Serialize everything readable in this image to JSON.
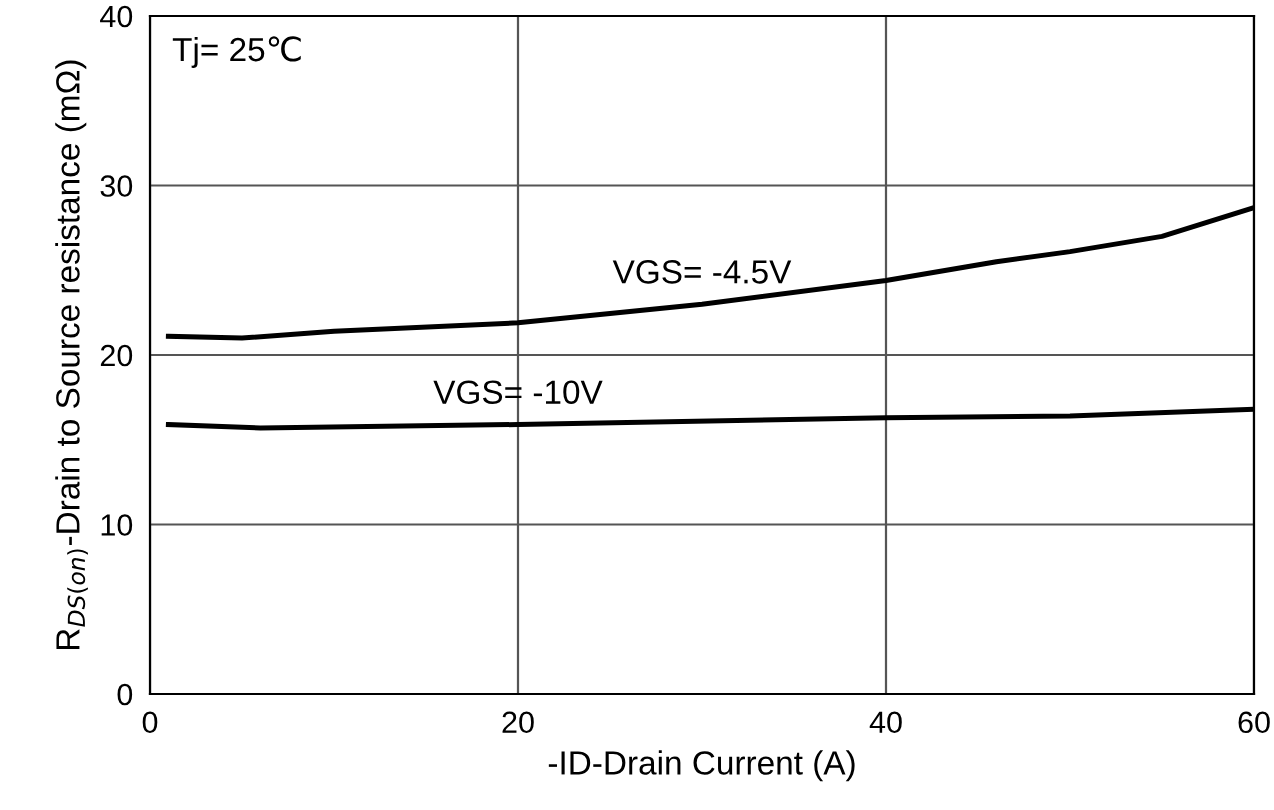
{
  "chart_data": {
    "type": "line",
    "xlabel": "-ID-Drain Current (A)",
    "ylabel": "R$_{DS(on)}$-Drain to Source resistance (mΩ)",
    "annotations": [
      "Tj= 25℃"
    ],
    "xlim": [
      0,
      60
    ],
    "xticks": [
      0,
      20,
      40,
      60
    ],
    "ylim": [
      0,
      40
    ],
    "yticks": [
      0,
      10,
      20,
      30,
      40
    ],
    "grid": true,
    "legend": false,
    "series": [
      {
        "name": "VGS= -4.5V",
        "color": "#000000",
        "x": [
          1,
          5,
          10,
          20,
          30,
          40,
          46,
          50,
          55,
          60
        ],
        "values": [
          21.1,
          21.0,
          21.4,
          21.9,
          23.0,
          24.4,
          25.5,
          26.1,
          27.0,
          28.7
        ]
      },
      {
        "name": "VGS= -10V",
        "color": "#000000",
        "x": [
          1,
          6,
          20,
          40,
          50,
          60
        ],
        "values": [
          15.9,
          15.7,
          15.9,
          16.3,
          16.4,
          16.8
        ]
      }
    ]
  }
}
